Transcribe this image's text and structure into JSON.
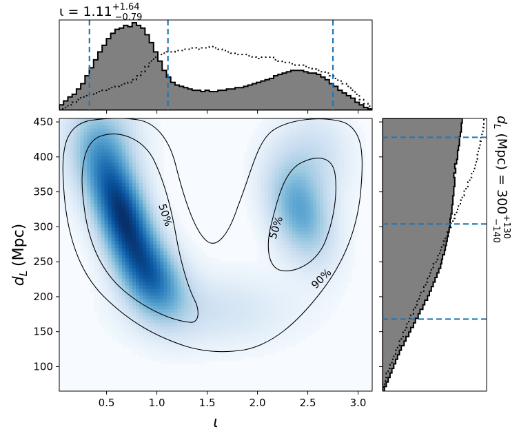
{
  "chart_data": [
    {
      "type": "area",
      "panel": "top-marginal",
      "title_symbol": "ι",
      "title_value": "= 1.11",
      "title_sup": "+1.64",
      "title_sub": "−0.79",
      "xlim": [
        0.03,
        3.14
      ],
      "posterior_fill": "#808080",
      "dashed_lines_x": [
        0.33,
        1.11,
        2.75
      ],
      "dashed_color": "#1f77b4",
      "posterior_steps": [
        4,
        7,
        10,
        12,
        16,
        20,
        26,
        32,
        38,
        44,
        49,
        54,
        58,
        61,
        62,
        64,
        63,
        66,
        64,
        62,
        57,
        51,
        44,
        37,
        30,
        25,
        21,
        19,
        18,
        17,
        16,
        15,
        15,
        14,
        15,
        14,
        14,
        15,
        15,
        16,
        16,
        17,
        17,
        18,
        19,
        20,
        21,
        22,
        23,
        24,
        26,
        27,
        28,
        29,
        30,
        30,
        30,
        29,
        28,
        28,
        27,
        25,
        23,
        20,
        18,
        15,
        13,
        11,
        9,
        6,
        4,
        2,
        1
      ],
      "prior_steps": [
        1,
        2,
        4,
        6,
        8,
        10,
        11,
        12,
        13,
        14,
        15,
        16,
        17,
        18,
        19,
        20,
        21,
        23,
        26,
        29,
        33,
        37,
        40,
        42,
        43,
        44,
        44,
        45,
        45,
        46,
        46,
        47,
        46,
        47,
        47,
        48,
        47,
        46,
        45,
        44,
        43,
        42,
        42,
        42,
        41,
        40,
        39,
        40,
        40,
        40,
        38,
        37,
        36,
        36,
        35,
        34,
        34,
        33,
        32,
        31,
        30,
        29,
        28,
        26,
        24,
        22,
        20,
        18,
        15,
        12,
        8,
        5,
        3
      ]
    },
    {
      "type": "heatmap",
      "panel": "joint",
      "xlabel": "ι",
      "ylabel": "d",
      "ylabel_sub": "L",
      "ylabel_unit": "(Mpc)",
      "xlim": [
        0.03,
        3.14
      ],
      "ylim": [
        65,
        455
      ],
      "xticks": [
        "0.5",
        "1.0",
        "1.5",
        "2.0",
        "2.5",
        "3.0"
      ],
      "yticks": [
        "100",
        "150",
        "200",
        "250",
        "300",
        "350",
        "400",
        "450"
      ],
      "colormap": "Blues",
      "density_peaks": [
        {
          "iota": 0.68,
          "dL": 310,
          "weight": 1.0
        },
        {
          "iota": 1.0,
          "dL": 215,
          "weight": 0.55
        },
        {
          "iota": 2.4,
          "dL": 320,
          "weight": 0.48
        }
      ],
      "contours": [
        {
          "label": "50%",
          "label_iota": 0.55,
          "label_dL": 310
        },
        {
          "label": "50%",
          "label_iota": 2.2,
          "label_dL": 300
        },
        {
          "label": "90%",
          "label_iota": 2.6,
          "label_dL": 220
        }
      ]
    },
    {
      "type": "area",
      "panel": "right-marginal",
      "label_symbol": "d",
      "label_sub": "L",
      "label_text": "(Mpc) = 300",
      "label_sup": "+130",
      "label_sub2": "−140",
      "ylim": [
        65,
        455
      ],
      "posterior_fill": "#808080",
      "dashed_lines_y": [
        428,
        304,
        168
      ],
      "dashed_color": "#1f77b4",
      "posterior_steps": [
        2,
        4,
        6,
        8,
        10,
        12,
        14,
        16,
        18,
        20,
        23,
        25,
        28,
        30,
        33,
        35,
        38,
        40,
        43,
        45,
        48,
        50,
        52,
        54,
        56,
        58,
        60,
        62,
        63,
        64,
        66,
        67,
        68,
        69,
        70,
        71,
        72,
        72,
        73,
        74,
        74,
        75,
        75,
        76,
        76,
        77,
        77,
        76,
        78,
        77,
        79,
        80,
        80,
        81,
        82,
        82,
        83,
        84,
        84,
        85
      ],
      "prior_steps": [
        1,
        2,
        3,
        4,
        6,
        8,
        10,
        12,
        14,
        16,
        18,
        20,
        22,
        24,
        26,
        28,
        30,
        33,
        35,
        37,
        39,
        41,
        44,
        46,
        48,
        50,
        52,
        54,
        57,
        59,
        61,
        63,
        65,
        67,
        69,
        71,
        73,
        75,
        77,
        79,
        81,
        83,
        85,
        87,
        89,
        91,
        93,
        95,
        97,
        99,
        100,
        101,
        102,
        103,
        104,
        105,
        106,
        107,
        108,
        108
      ]
    }
  ]
}
